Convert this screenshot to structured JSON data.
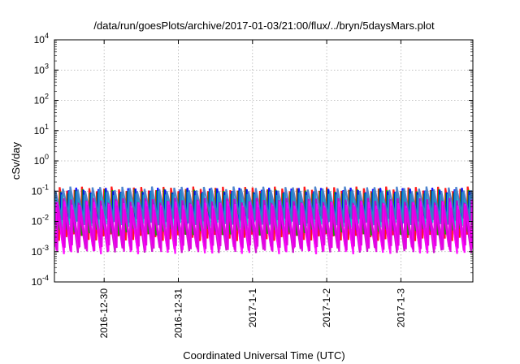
{
  "chart_data": {
    "type": "line",
    "title": "/data/run/goesPlots/archive/2017-01-03/21:00/flux/../bryn/5daysMars.plot",
    "xlabel": "Coordinated Universal Time (UTC)",
    "ylabel": "cSv/day",
    "x_tick_labels": [
      "2016-12-30",
      "2016-12-31",
      "2017-1-1",
      "2017-1-2",
      "2017-1-3"
    ],
    "y_scale": "log",
    "ylim": [
      0.0001,
      10000
    ],
    "y_tick_labels": [
      {
        "base": "10",
        "exp": "4"
      },
      {
        "base": "10",
        "exp": "3"
      },
      {
        "base": "10",
        "exp": "2"
      },
      {
        "base": "10",
        "exp": "1"
      },
      {
        "base": "10",
        "exp": "0"
      },
      {
        "base": "10",
        "exp": "-1"
      },
      {
        "base": "10",
        "exp": "-2"
      },
      {
        "base": "10",
        "exp": "-3"
      },
      {
        "base": "10",
        "exp": "-4"
      }
    ],
    "grid": true,
    "xlim_days_from_2016_12_30": [
      -0.67,
      4.97
    ],
    "sawtooth_period_days": 0.1,
    "series": [
      {
        "color": "#ff0000",
        "peak": 0.12,
        "trough": 0.003
      },
      {
        "color": "#00aa00",
        "peak": 0.1,
        "trough": 0.0045
      },
      {
        "color": "#0000ff",
        "peak": 0.11,
        "trough": 0.006
      },
      {
        "color": "#00c8c8",
        "peak": 0.09,
        "trough": 0.008
      },
      {
        "color": "#3c78c8",
        "peak": 0.12,
        "trough": 0.01
      },
      {
        "color": "#c800c8",
        "peak": 0.05,
        "trough": 0.0012
      },
      {
        "color": "#ff00ff",
        "peak": 0.04,
        "trough": 0.0011
      },
      {
        "color": "#e000e0",
        "peak": 0.03,
        "trough": 0.0013
      }
    ]
  }
}
